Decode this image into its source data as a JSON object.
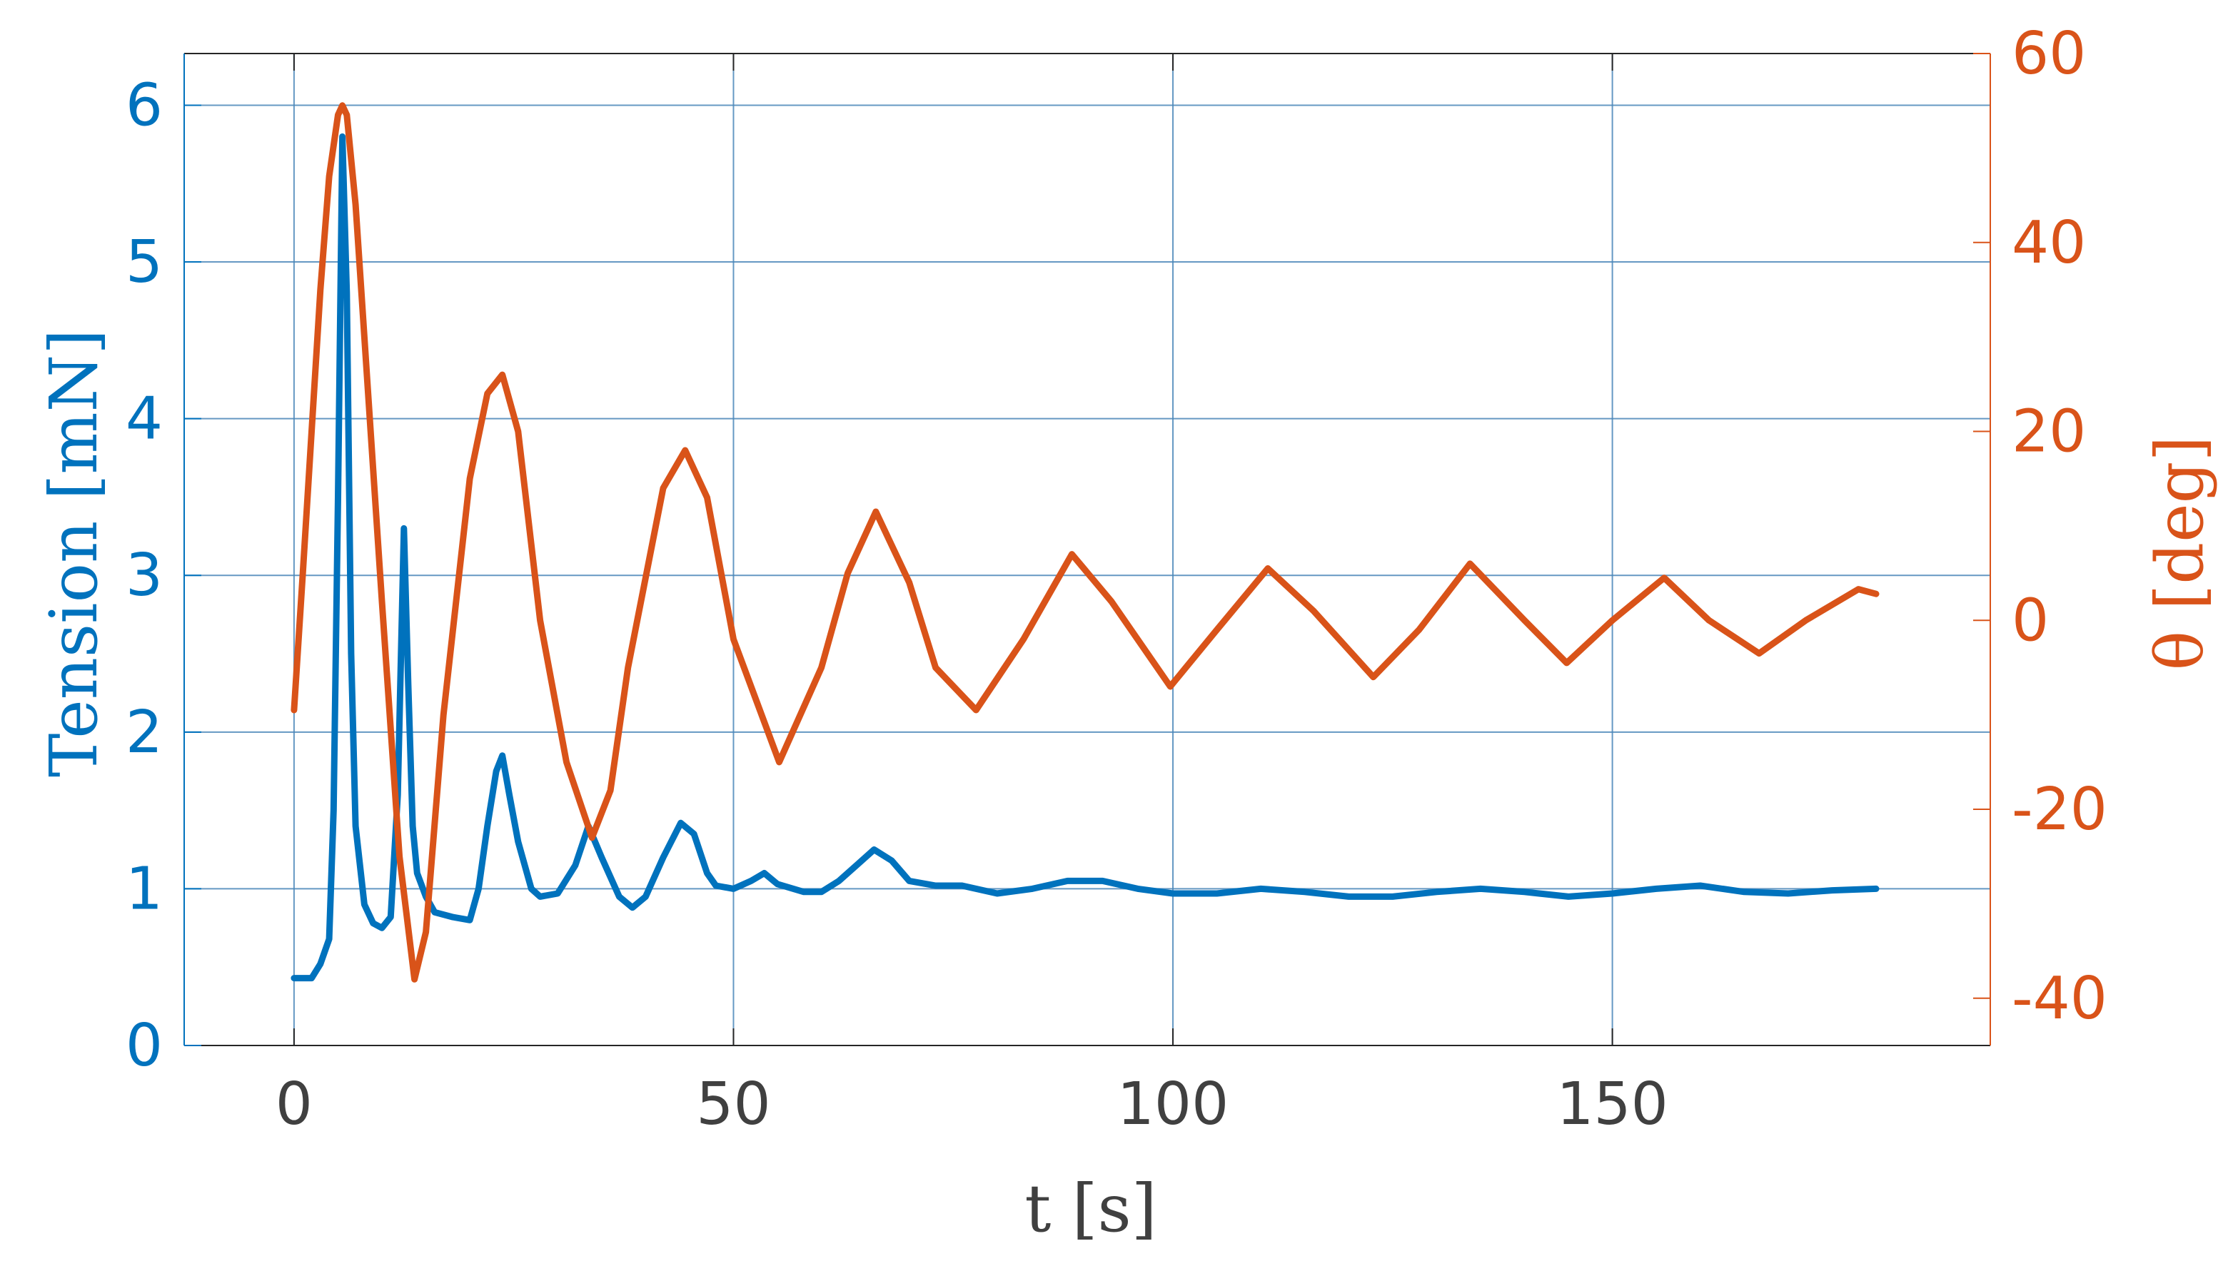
{
  "chart_data": {
    "type": "line",
    "title": "",
    "xlabel": "t [s]",
    "ylabel_left": "Tension [mN]",
    "ylabel_right": "θ [deg]",
    "xlim": [
      -12.5,
      193
    ],
    "ylim_left": [
      0,
      6.33
    ],
    "ylim_right": [
      -45,
      60
    ],
    "xticks": [
      0,
      50,
      100,
      150
    ],
    "yticks_left": [
      0,
      1,
      2,
      3,
      4,
      5,
      6
    ],
    "yticks_right": [
      -40,
      -20,
      0,
      20,
      40,
      60
    ],
    "grid": true,
    "colors": {
      "left": "#0072BD",
      "right": "#D95319",
      "grid": "#4A86B8",
      "tick_text_x": "#404040"
    },
    "series": [
      {
        "axis": "left",
        "x": [
          0,
          2,
          3,
          4,
          4.5,
          5,
          5.5,
          6,
          6.5,
          7,
          8,
          9,
          10,
          11,
          11.8,
          12.5,
          13,
          13.5,
          14,
          15,
          16,
          18,
          20,
          21,
          22,
          23,
          23.7,
          24.5,
          25.5,
          27,
          28,
          30,
          32,
          33.5,
          35,
          37,
          38.5,
          40,
          42,
          44,
          45.5,
          47,
          48,
          50,
          52,
          53.5,
          55,
          58,
          60,
          62,
          64,
          66,
          68,
          70,
          73,
          76,
          80,
          84,
          88,
          92,
          96,
          100,
          105,
          110,
          115,
          120,
          125,
          130,
          135,
          140,
          145,
          150,
          155,
          160,
          165,
          170,
          175,
          180
        ],
        "y": [
          0.43,
          0.43,
          0.52,
          0.68,
          1.5,
          3.5,
          5.8,
          4.8,
          2.5,
          1.4,
          0.9,
          0.78,
          0.75,
          0.82,
          1.6,
          3.3,
          2.3,
          1.4,
          1.1,
          0.95,
          0.85,
          0.82,
          0.8,
          1.0,
          1.4,
          1.75,
          1.85,
          1.6,
          1.3,
          1.0,
          0.95,
          0.97,
          1.15,
          1.4,
          1.2,
          0.95,
          0.88,
          0.95,
          1.2,
          1.42,
          1.35,
          1.1,
          1.02,
          1.0,
          1.05,
          1.1,
          1.03,
          0.98,
          0.98,
          1.05,
          1.15,
          1.25,
          1.18,
          1.05,
          1.02,
          1.02,
          0.97,
          1.0,
          1.05,
          1.05,
          1.0,
          0.97,
          0.97,
          1.0,
          0.98,
          0.95,
          0.95,
          0.98,
          1.0,
          0.98,
          0.95,
          0.97,
          1.0,
          1.02,
          0.98,
          0.97,
          0.99,
          1.0
        ]
      },
      {
        "axis": "right",
        "x": [
          0,
          1,
          2,
          3,
          4,
          5,
          5.5,
          6,
          7,
          8,
          10,
          12,
          13.7,
          15,
          17,
          20,
          22,
          23.7,
          25.5,
          28,
          31,
          33.9,
          36,
          38,
          42,
          44.5,
          47,
          50,
          55.2,
          60,
          63,
          66.2,
          70,
          73,
          77.6,
          83,
          88.5,
          93,
          99.7,
          105,
          110.8,
          116,
          122.8,
          128,
          133.8,
          140,
          144.8,
          150,
          155.9,
          161,
          166.7,
          172,
          178,
          180
        ],
        "y": [
          -9.5,
          5,
          20,
          35,
          47,
          53.5,
          54.5,
          53.5,
          44,
          30,
          2,
          -25,
          -38,
          -33,
          -10,
          15,
          24,
          26,
          20,
          0,
          -15,
          -23,
          -18,
          -5,
          14,
          18,
          13,
          -2,
          -15,
          -5,
          5,
          11.5,
          4,
          -5,
          -9.5,
          -2,
          7,
          2,
          -7,
          -1,
          5.5,
          1,
          -6,
          -1,
          6,
          0,
          -4.5,
          0,
          4.5,
          0,
          -3.5,
          0,
          3.3,
          2.8
        ]
      }
    ]
  }
}
